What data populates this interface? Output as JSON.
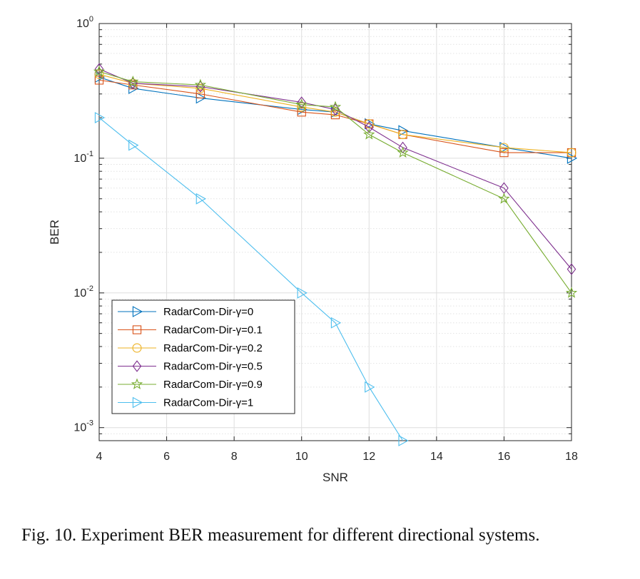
{
  "chart_data": {
    "type": "line",
    "xlabel": "SNR",
    "ylabel": "BER",
    "yscale": "log",
    "xlim": [
      4,
      18
    ],
    "ylim": [
      0.0008,
      1
    ],
    "xticks": [
      4,
      6,
      8,
      10,
      12,
      14,
      16,
      18
    ],
    "yticks": [
      {
        "value": 1,
        "base": "10",
        "exp": "0"
      },
      {
        "value": 0.1,
        "base": "10",
        "exp": "-1"
      },
      {
        "value": 0.01,
        "base": "10",
        "exp": "-2"
      },
      {
        "value": 0.001,
        "base": "10",
        "exp": "-3"
      }
    ],
    "grid": true,
    "legend_position": "bottom-left",
    "series": [
      {
        "name": "RadarCom-Dir-γ=0",
        "color": "#0072BD",
        "marker": "triangle-right",
        "x": [
          4,
          5,
          7,
          10,
          11,
          12,
          13,
          16,
          18
        ],
        "y": [
          0.4,
          0.33,
          0.28,
          0.23,
          0.22,
          0.18,
          0.16,
          0.12,
          0.1
        ]
      },
      {
        "name": "RadarCom-Dir-γ=0.1",
        "color": "#D95319",
        "marker": "square",
        "x": [
          4,
          5,
          7,
          10,
          11,
          12,
          13,
          16,
          18
        ],
        "y": [
          0.38,
          0.35,
          0.3,
          0.22,
          0.21,
          0.18,
          0.15,
          0.11,
          0.11
        ]
      },
      {
        "name": "RadarCom-Dir-γ=0.2",
        "color": "#EDB120",
        "marker": "circle",
        "x": [
          4,
          5,
          7,
          10,
          11,
          12,
          13,
          16,
          18
        ],
        "y": [
          0.42,
          0.36,
          0.33,
          0.24,
          0.22,
          0.18,
          0.15,
          0.12,
          0.11
        ]
      },
      {
        "name": "RadarCom-Dir-γ=0.5",
        "color": "#7E2F8E",
        "marker": "diamond",
        "x": [
          4,
          5,
          7,
          10,
          11,
          12,
          13,
          16,
          18
        ],
        "y": [
          0.46,
          0.36,
          0.34,
          0.26,
          0.23,
          0.17,
          0.12,
          0.06,
          0.015
        ]
      },
      {
        "name": "RadarCom-Dir-γ=0.9",
        "color": "#77AC30",
        "marker": "star",
        "x": [
          4,
          5,
          7,
          10,
          11,
          12,
          13,
          16,
          18
        ],
        "y": [
          0.44,
          0.37,
          0.35,
          0.25,
          0.24,
          0.15,
          0.11,
          0.05,
          0.01
        ]
      },
      {
        "name": "RadarCom-Dir-γ=1",
        "color": "#4DBEEE",
        "marker": "triangle-right",
        "x": [
          4,
          5,
          7,
          10,
          11,
          12,
          13
        ],
        "y": [
          0.2,
          0.125,
          0.05,
          0.01,
          0.006,
          0.002,
          0.0008
        ]
      }
    ]
  },
  "caption": "Fig. 10. Experiment BER measurement for different directional systems."
}
